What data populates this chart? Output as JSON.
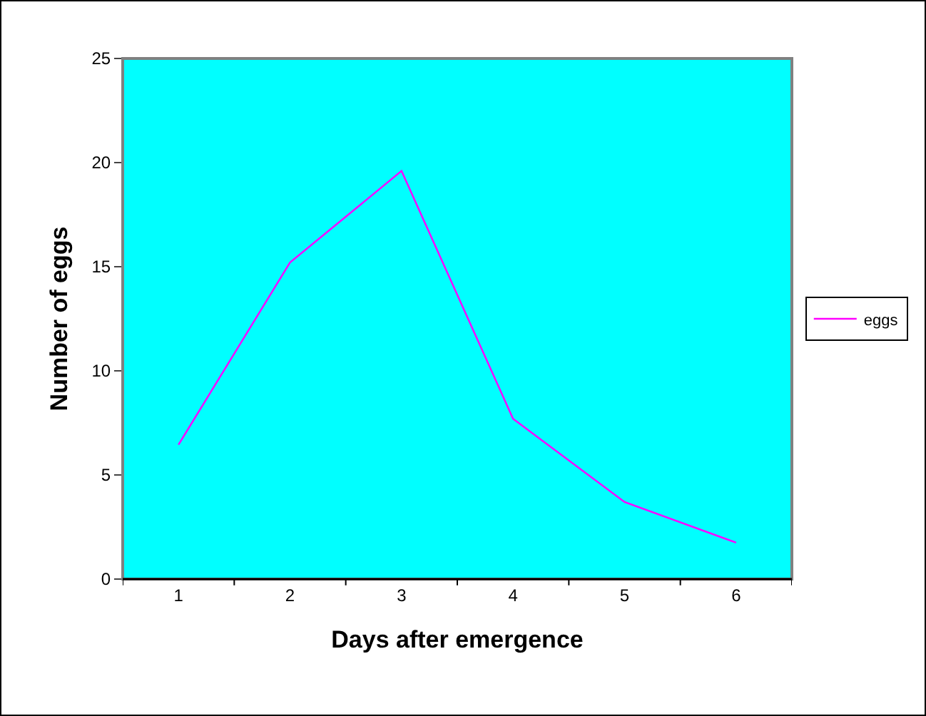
{
  "chart_data": {
    "type": "line",
    "xlabel": "Days after emergence",
    "ylabel": "Number of eggs",
    "categories": [
      "1",
      "2",
      "3",
      "4",
      "5",
      "6"
    ],
    "series": [
      {
        "name": "eggs",
        "color": "#ff00ff",
        "values": [
          6.45,
          15.2,
          19.6,
          7.7,
          3.7,
          1.75
        ]
      }
    ],
    "ylim": [
      0,
      25
    ],
    "yticks": [
      0,
      5,
      10,
      15,
      20,
      25
    ],
    "grid": false,
    "legend": "right",
    "marker": "none",
    "line_style": "solid"
  }
}
